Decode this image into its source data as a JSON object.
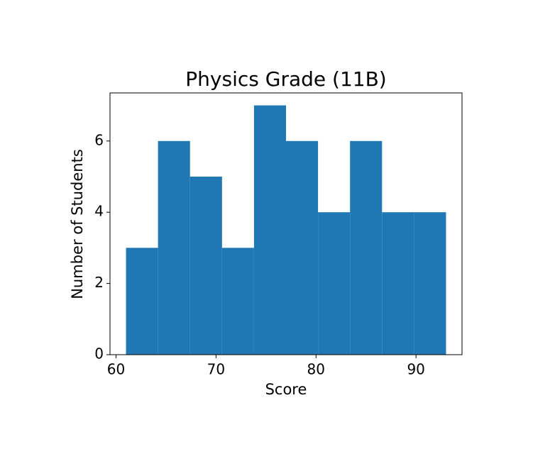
{
  "chart_data": {
    "type": "histogram",
    "title": "Physics Grade (11B)",
    "x_label": "Score",
    "y_label": "Number of Students",
    "bins": [
      61,
      64.2,
      67.4,
      70.6,
      73.8,
      77,
      80.2,
      83.4,
      86.6,
      89.8,
      93
    ],
    "values": [
      3,
      6,
      5,
      3,
      7,
      6,
      4,
      6,
      4,
      4
    ],
    "color": "#1f77b4",
    "xlim": [
      59.4,
      94.6
    ],
    "xticks": [
      60,
      70,
      80,
      90
    ],
    "ylim": [
      0,
      7.35
    ],
    "yticks": [
      0,
      2,
      4,
      6
    ],
    "grid": false
  }
}
